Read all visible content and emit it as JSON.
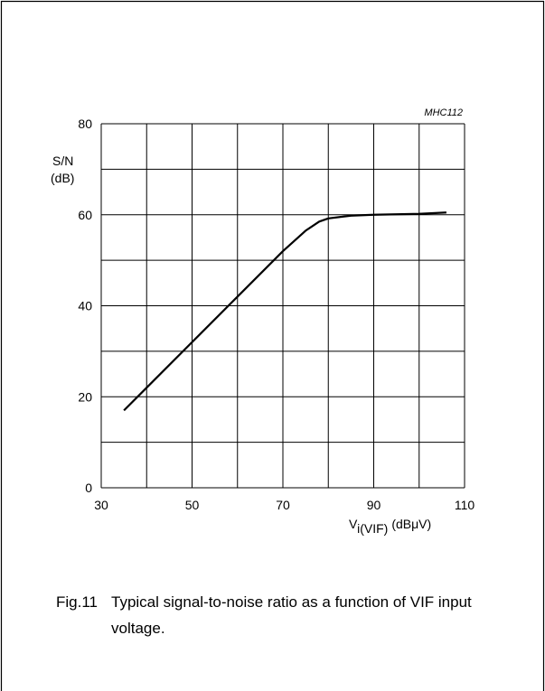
{
  "chart_data": {
    "type": "line",
    "code": "MHC112",
    "y_label": "S/N",
    "y_unit": "(dB)",
    "x_label": "V",
    "x_label_sub": "i(VIF)",
    "x_unit": "(dBμV)",
    "caption_number": "Fig.11",
    "caption": "Typical signal-to-noise ratio as a function of VIF input voltage.",
    "xlim": [
      30,
      110
    ],
    "xticks": [
      30,
      50,
      70,
      90,
      110
    ],
    "xgrid": [
      40,
      60,
      80,
      100
    ],
    "ylim": [
      0,
      80
    ],
    "yticks": [
      0,
      20,
      40,
      60,
      80
    ],
    "ygrid": [
      10,
      30,
      50,
      70
    ],
    "color": "#000000",
    "x": [
      35,
      40,
      50,
      60,
      70,
      75,
      78,
      80,
      85,
      90,
      100,
      106
    ],
    "values": [
      17,
      22,
      32,
      42,
      52,
      56.5,
      58.5,
      59.2,
      59.8,
      60,
      60.2,
      60.5
    ]
  }
}
